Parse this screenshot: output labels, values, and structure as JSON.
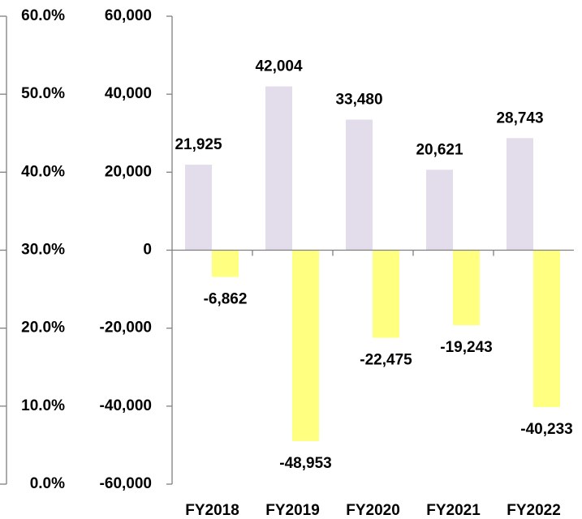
{
  "chart_data": {
    "type": "bar",
    "categories": [
      "FY2018",
      "FY2019",
      "FY2020",
      "FY2021",
      "FY2022"
    ],
    "series": [
      {
        "color": "#e3dcea",
        "values": [
          21925,
          42004,
          33480,
          20621,
          28743
        ],
        "value_labels": [
          "21,925",
          "42,004",
          "33,480",
          "20,621",
          "28,743"
        ]
      },
      {
        "color": "#ffff80",
        "values": [
          -6862,
          -48953,
          -22475,
          -19243,
          -40233
        ],
        "value_labels": [
          "-6,862",
          "-48,953",
          "-22,475",
          "-19,243",
          "-40,233"
        ]
      }
    ],
    "ylim": [
      -60000,
      60000
    ],
    "yticks": [
      {
        "value": -60000,
        "label": "-60,000"
      },
      {
        "value": -40000,
        "label": "-40,000"
      },
      {
        "value": -20000,
        "label": "-20,000"
      },
      0,
      {
        "value": 20000,
        "label": "20,000"
      },
      {
        "value": 40000,
        "label": "40,000"
      },
      {
        "value": 60000,
        "label": "60,000"
      }
    ],
    "y2lim": [
      0,
      60
    ],
    "y2ticks": [
      {
        "value": 0,
        "label": "0.0%"
      },
      {
        "value": 10,
        "label": "10.0%"
      },
      {
        "value": 20,
        "label": "20.0%"
      },
      {
        "value": 30,
        "label": "30.0%"
      },
      {
        "value": 40,
        "label": "40.0%"
      },
      {
        "value": 50,
        "label": "50.0%"
      },
      {
        "value": 60,
        "label": "60.0%"
      }
    ]
  }
}
